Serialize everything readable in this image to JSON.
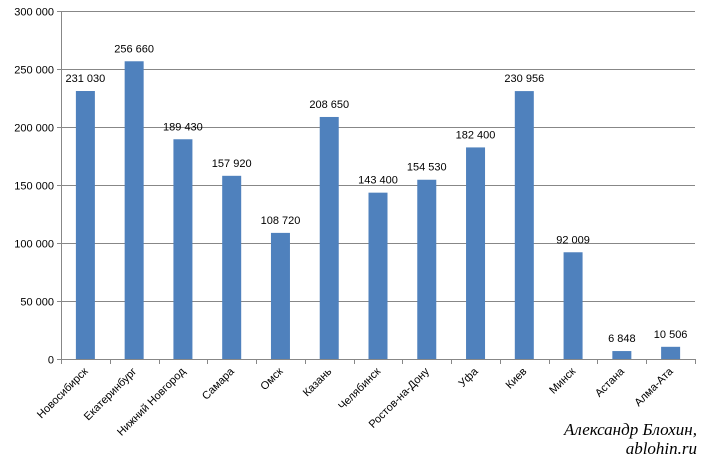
{
  "chart_data": {
    "type": "bar",
    "title": "",
    "xlabel": "",
    "ylabel": "",
    "categories": [
      "Новосибирск",
      "Екатеринбург",
      "Нижний Новгород",
      "Самара",
      "Омск",
      "Казань",
      "Челябинск",
      "Ростов-на-Дону",
      "Уфа",
      "Киев",
      "Минск",
      "Астана",
      "Алма-Ата"
    ],
    "values": [
      231030,
      256660,
      189430,
      157920,
      108720,
      208650,
      143400,
      154530,
      182400,
      230956,
      92009,
      6848,
      10506
    ],
    "value_labels": [
      "231 030",
      "256 660",
      "189 430",
      "157 920",
      "108 720",
      "208 650",
      "143 400",
      "154 530",
      "182 400",
      "230 956",
      "92 009",
      "6 848",
      "10 506"
    ],
    "ylim": [
      0,
      300000
    ],
    "y_ticks": [
      0,
      50000,
      100000,
      150000,
      200000,
      250000,
      300000
    ],
    "y_tick_labels": [
      "0",
      "50 000",
      "100 000",
      "150 000",
      "200 000",
      "250 000",
      "300 000"
    ],
    "grid": true,
    "bar_color": "#4F81BD",
    "grid_color": "#878787"
  },
  "credit": {
    "line1": "Александр Блохин,",
    "line2": "ablohin.ru"
  }
}
